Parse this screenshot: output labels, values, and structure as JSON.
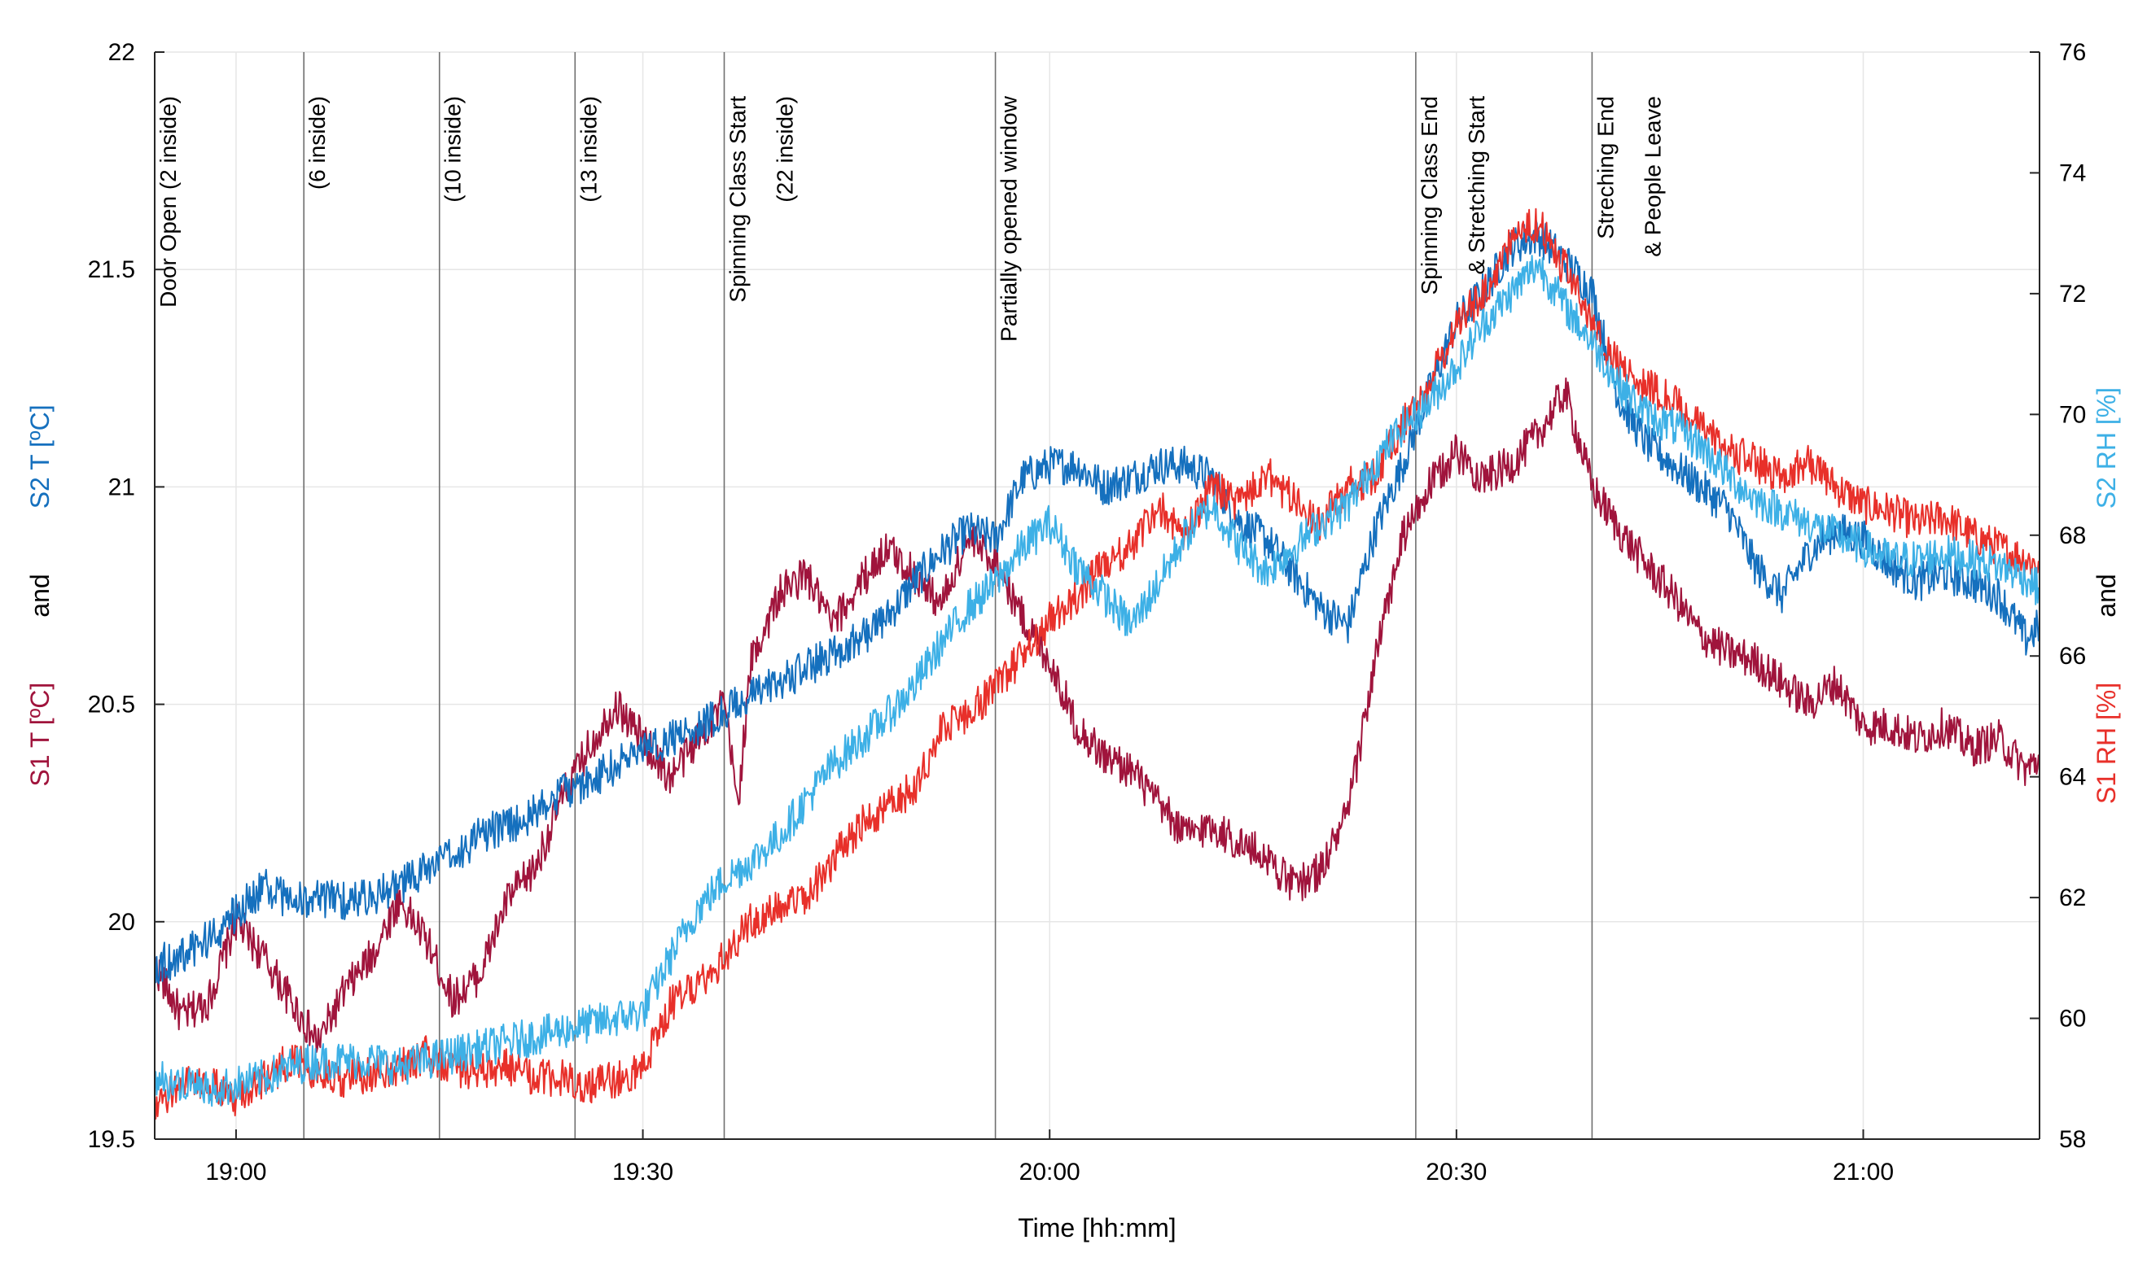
{
  "chart_data": {
    "type": "line",
    "x_axis": {
      "label": "Time [hh:mm]",
      "range": [
        "18:54",
        "21:13"
      ],
      "ticks": [
        "19:00",
        "19:30",
        "20:00",
        "20:30",
        "21:00"
      ],
      "grid": true
    },
    "y_left": {
      "range": [
        19.5,
        22
      ],
      "ticks": [
        19.5,
        20,
        20.5,
        21,
        21.5,
        22
      ],
      "label_parts": [
        {
          "text": "S1 T [ºC]",
          "color": "#a0143c"
        },
        {
          "text": "and",
          "color": "#000000"
        },
        {
          "text": "S2 T [ºC]",
          "color": "#1570be"
        }
      ]
    },
    "y_right": {
      "range": [
        58,
        76
      ],
      "ticks": [
        58,
        60,
        62,
        64,
        66,
        68,
        70,
        72,
        74,
        76
      ],
      "label_parts": [
        {
          "text": "S1 RH [%]",
          "color": "#e8302a"
        },
        {
          "text": "and",
          "color": "#000000"
        },
        {
          "text": "S2 RH [%]",
          "color": "#3db0e6"
        }
      ]
    },
    "events": [
      {
        "time": "18:54",
        "lines": [
          "Door Open (2 inside)"
        ]
      },
      {
        "time": "19:05",
        "lines": [
          "(6 inside)"
        ]
      },
      {
        "time": "19:15",
        "lines": [
          "(10 inside)"
        ]
      },
      {
        "time": "19:25",
        "lines": [
          "(13 inside)"
        ]
      },
      {
        "time": "19:36",
        "lines": [
          "Spinning Class Start",
          "(22 inside)"
        ]
      },
      {
        "time": "19:56",
        "lines": [
          "Partially opened window"
        ]
      },
      {
        "time": "20:27",
        "lines": [
          "Spinning Class End",
          "& Stretching Start"
        ]
      },
      {
        "time": "20:40",
        "lines": [
          "Streching End",
          "& People Leave"
        ]
      }
    ],
    "series": [
      {
        "name": "S1 T [ºC]",
        "axis": "left",
        "color": "#a0143c",
        "x": [
          "18:54",
          "18:56",
          "18:58",
          "19:00",
          "19:02",
          "19:04",
          "19:06",
          "19:08",
          "19:10",
          "19:12",
          "19:14",
          "19:16",
          "19:18",
          "19:20",
          "19:22",
          "19:24",
          "19:26",
          "19:28",
          "19:30",
          "19:32",
          "19:34",
          "19:36",
          "19:37",
          "19:38",
          "19:40",
          "19:42",
          "19:44",
          "19:46",
          "19:48",
          "19:50",
          "19:52",
          "19:54",
          "19:56",
          "19:58",
          "20:00",
          "20:02",
          "20:04",
          "20:06",
          "20:08",
          "20:10",
          "20:12",
          "20:14",
          "20:16",
          "20:18",
          "20:20",
          "20:22",
          "20:24",
          "20:26",
          "20:28",
          "20:30",
          "20:32",
          "20:34",
          "20:36",
          "20:38",
          "20:40",
          "20:42",
          "20:44",
          "20:46",
          "20:48",
          "20:50",
          "20:52",
          "20:54",
          "20:56",
          "20:58",
          "21:00",
          "21:02",
          "21:04",
          "21:06",
          "21:08",
          "21:10",
          "21:12",
          "21:13"
        ],
        "y": [
          19.9,
          19.78,
          19.82,
          20.0,
          19.92,
          19.82,
          19.72,
          19.84,
          19.92,
          20.05,
          19.96,
          19.82,
          19.88,
          20.05,
          20.12,
          20.28,
          20.4,
          20.5,
          20.42,
          20.33,
          20.42,
          20.5,
          20.27,
          20.6,
          20.75,
          20.8,
          20.68,
          20.78,
          20.86,
          20.8,
          20.73,
          20.88,
          20.83,
          20.7,
          20.6,
          20.45,
          20.38,
          20.35,
          20.27,
          20.2,
          20.22,
          20.18,
          20.15,
          20.08,
          20.12,
          20.25,
          20.6,
          20.88,
          21.0,
          21.08,
          21.02,
          21.05,
          21.12,
          21.22,
          21.0,
          20.9,
          20.82,
          20.75,
          20.66,
          20.62,
          20.6,
          20.55,
          20.5,
          20.55,
          20.45,
          20.45,
          20.42,
          20.45,
          20.4,
          20.42,
          20.35,
          20.37
        ]
      },
      {
        "name": "S2 T [ºC]",
        "axis": "left",
        "color": "#1570be",
        "x": [
          "18:54",
          "18:56",
          "18:58",
          "19:00",
          "19:02",
          "19:04",
          "19:06",
          "19:08",
          "19:10",
          "19:12",
          "19:14",
          "19:16",
          "19:18",
          "19:20",
          "19:22",
          "19:24",
          "19:26",
          "19:28",
          "19:30",
          "19:32",
          "19:34",
          "19:36",
          "19:38",
          "19:40",
          "19:42",
          "19:44",
          "19:46",
          "19:48",
          "19:50",
          "19:52",
          "19:54",
          "19:56",
          "19:58",
          "20:00",
          "20:02",
          "20:04",
          "20:06",
          "20:08",
          "20:10",
          "20:12",
          "20:14",
          "20:16",
          "20:18",
          "20:20",
          "20:22",
          "20:24",
          "20:26",
          "20:28",
          "20:30",
          "20:32",
          "20:34",
          "20:36",
          "20:38",
          "20:40",
          "20:42",
          "20:44",
          "20:46",
          "20:48",
          "20:50",
          "20:52",
          "20:54",
          "20:56",
          "20:58",
          "21:00",
          "21:02",
          "21:04",
          "21:06",
          "21:08",
          "21:10",
          "21:12",
          "21:13"
        ],
        "y": [
          19.9,
          19.92,
          19.96,
          20.02,
          20.08,
          20.05,
          20.05,
          20.05,
          20.06,
          20.08,
          20.12,
          20.15,
          20.2,
          20.22,
          20.25,
          20.3,
          20.32,
          20.36,
          20.4,
          20.42,
          20.45,
          20.48,
          20.52,
          20.55,
          20.58,
          20.62,
          20.65,
          20.7,
          20.78,
          20.85,
          20.9,
          20.88,
          21.02,
          21.05,
          21.05,
          21.0,
          21.02,
          21.05,
          21.05,
          21.02,
          20.92,
          20.88,
          20.8,
          20.72,
          20.68,
          20.9,
          21.05,
          21.22,
          21.38,
          21.45,
          21.55,
          21.58,
          21.52,
          21.45,
          21.2,
          21.1,
          21.05,
          21.0,
          20.95,
          20.82,
          20.75,
          20.85,
          20.9,
          20.88,
          20.82,
          20.78,
          20.8,
          20.78,
          20.75,
          20.65,
          20.68
        ]
      },
      {
        "name": "S1 RH [%]",
        "axis": "right",
        "color": "#e8302a",
        "x": [
          "18:54",
          "18:56",
          "18:58",
          "19:00",
          "19:02",
          "19:04",
          "19:06",
          "19:08",
          "19:10",
          "19:12",
          "19:14",
          "19:16",
          "19:18",
          "19:20",
          "19:22",
          "19:24",
          "19:26",
          "19:28",
          "19:30",
          "19:32",
          "19:34",
          "19:36",
          "19:38",
          "19:40",
          "19:42",
          "19:44",
          "19:46",
          "19:48",
          "19:50",
          "19:52",
          "19:54",
          "19:56",
          "19:58",
          "20:00",
          "20:02",
          "20:04",
          "20:06",
          "20:08",
          "20:10",
          "20:12",
          "20:14",
          "20:16",
          "20:18",
          "20:20",
          "20:22",
          "20:24",
          "20:26",
          "20:28",
          "20:30",
          "20:32",
          "20:34",
          "20:36",
          "20:38",
          "20:40",
          "20:42",
          "20:44",
          "20:46",
          "20:48",
          "20:50",
          "20:52",
          "20:54",
          "20:56",
          "20:58",
          "21:00",
          "21:02",
          "21:04",
          "21:06",
          "21:08",
          "21:10",
          "21:12",
          "21:13"
        ],
        "y": [
          58.4,
          59.0,
          58.9,
          58.7,
          59.0,
          59.3,
          59.1,
          59.0,
          59.1,
          59.2,
          59.4,
          59.2,
          59.1,
          59.2,
          59.0,
          59.0,
          58.9,
          59.0,
          59.2,
          60.2,
          60.6,
          61.0,
          61.6,
          61.8,
          62.0,
          62.6,
          63.2,
          63.5,
          63.8,
          64.8,
          65.0,
          65.5,
          66.0,
          66.6,
          67.0,
          67.5,
          67.8,
          68.5,
          68.0,
          68.8,
          68.5,
          69.0,
          68.6,
          68.2,
          68.8,
          69.0,
          69.8,
          70.5,
          71.5,
          72.0,
          72.8,
          73.2,
          72.4,
          71.5,
          70.8,
          70.5,
          70.2,
          69.8,
          69.4,
          69.2,
          69.0,
          69.2,
          68.8,
          68.5,
          68.4,
          68.2,
          68.3,
          68.0,
          67.8,
          67.6,
          67.5
        ]
      },
      {
        "name": "S2 RH [%]",
        "axis": "right",
        "color": "#3db0e6",
        "x": [
          "18:54",
          "18:56",
          "18:58",
          "19:00",
          "19:02",
          "19:04",
          "19:06",
          "19:08",
          "19:10",
          "19:12",
          "19:14",
          "19:16",
          "19:18",
          "19:20",
          "19:22",
          "19:24",
          "19:26",
          "19:28",
          "19:30",
          "19:32",
          "19:34",
          "19:36",
          "19:38",
          "19:40",
          "19:42",
          "19:44",
          "19:46",
          "19:48",
          "19:50",
          "19:52",
          "19:54",
          "19:56",
          "19:58",
          "20:00",
          "20:02",
          "20:04",
          "20:06",
          "20:08",
          "20:10",
          "20:12",
          "20:14",
          "20:16",
          "20:18",
          "20:20",
          "20:22",
          "20:24",
          "20:26",
          "20:28",
          "20:30",
          "20:32",
          "20:34",
          "20:36",
          "20:38",
          "20:40",
          "20:42",
          "20:44",
          "20:46",
          "20:48",
          "20:50",
          "20:52",
          "20:54",
          "20:56",
          "20:58",
          "21:00",
          "21:02",
          "21:04",
          "21:06",
          "21:08",
          "21:10",
          "21:12",
          "21:13"
        ],
        "y": [
          59.0,
          58.9,
          58.8,
          58.9,
          59.0,
          59.2,
          59.3,
          59.3,
          59.3,
          59.2,
          59.3,
          59.4,
          59.5,
          59.6,
          59.7,
          59.8,
          59.9,
          60.0,
          60.1,
          61.0,
          61.8,
          62.3,
          62.6,
          63.0,
          63.6,
          64.2,
          64.6,
          65.0,
          65.5,
          66.2,
          66.8,
          67.2,
          67.8,
          68.2,
          67.5,
          67.0,
          66.5,
          67.2,
          68.0,
          68.5,
          67.8,
          67.4,
          67.8,
          68.2,
          68.5,
          69.2,
          69.8,
          70.2,
          70.8,
          71.5,
          72.0,
          72.5,
          71.8,
          71.2,
          70.5,
          70.0,
          69.8,
          69.5,
          69.0,
          68.6,
          68.4,
          68.2,
          68.0,
          67.8,
          67.6,
          67.6,
          67.7,
          67.6,
          67.5,
          67.3,
          67.1
        ]
      }
    ]
  }
}
